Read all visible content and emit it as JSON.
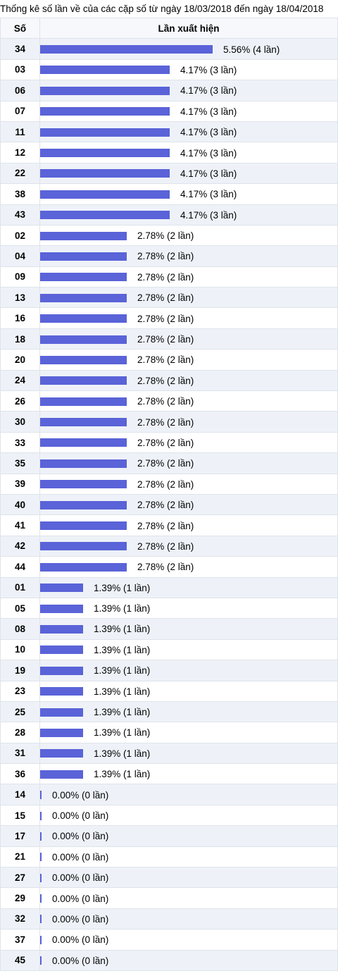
{
  "caption": "Thống kê số lần về của các cặp số từ ngày 18/03/2018 đến ngày 18/04/2018",
  "headers": {
    "num": "Số",
    "freq": "Lần xuất hiện"
  },
  "colors": {
    "bar": "#5a63d8",
    "row_alt": "#eef2f8"
  },
  "chart_data": {
    "type": "bar",
    "orientation": "horizontal",
    "title": "Thống kê số lần về của các cặp số từ ngày 18/03/2018 đến ngày 18/04/2018",
    "rows": [
      {
        "num": "34",
        "pct": 5.56,
        "count": 4,
        "label": "5.56% (4 lần)"
      },
      {
        "num": "03",
        "pct": 4.17,
        "count": 3,
        "label": "4.17% (3 lần)"
      },
      {
        "num": "06",
        "pct": 4.17,
        "count": 3,
        "label": "4.17% (3 lần)"
      },
      {
        "num": "07",
        "pct": 4.17,
        "count": 3,
        "label": "4.17% (3 lần)"
      },
      {
        "num": "11",
        "pct": 4.17,
        "count": 3,
        "label": "4.17% (3 lần)"
      },
      {
        "num": "12",
        "pct": 4.17,
        "count": 3,
        "label": "4.17% (3 lần)"
      },
      {
        "num": "22",
        "pct": 4.17,
        "count": 3,
        "label": "4.17% (3 lần)"
      },
      {
        "num": "38",
        "pct": 4.17,
        "count": 3,
        "label": "4.17% (3 lần)"
      },
      {
        "num": "43",
        "pct": 4.17,
        "count": 3,
        "label": "4.17% (3 lần)"
      },
      {
        "num": "02",
        "pct": 2.78,
        "count": 2,
        "label": "2.78% (2 lần)"
      },
      {
        "num": "04",
        "pct": 2.78,
        "count": 2,
        "label": "2.78% (2 lần)"
      },
      {
        "num": "09",
        "pct": 2.78,
        "count": 2,
        "label": "2.78% (2 lần)"
      },
      {
        "num": "13",
        "pct": 2.78,
        "count": 2,
        "label": "2.78% (2 lần)"
      },
      {
        "num": "16",
        "pct": 2.78,
        "count": 2,
        "label": "2.78% (2 lần)"
      },
      {
        "num": "18",
        "pct": 2.78,
        "count": 2,
        "label": "2.78% (2 lần)"
      },
      {
        "num": "20",
        "pct": 2.78,
        "count": 2,
        "label": "2.78% (2 lần)"
      },
      {
        "num": "24",
        "pct": 2.78,
        "count": 2,
        "label": "2.78% (2 lần)"
      },
      {
        "num": "26",
        "pct": 2.78,
        "count": 2,
        "label": "2.78% (2 lần)"
      },
      {
        "num": "30",
        "pct": 2.78,
        "count": 2,
        "label": "2.78% (2 lần)"
      },
      {
        "num": "33",
        "pct": 2.78,
        "count": 2,
        "label": "2.78% (2 lần)"
      },
      {
        "num": "35",
        "pct": 2.78,
        "count": 2,
        "label": "2.78% (2 lần)"
      },
      {
        "num": "39",
        "pct": 2.78,
        "count": 2,
        "label": "2.78% (2 lần)"
      },
      {
        "num": "40",
        "pct": 2.78,
        "count": 2,
        "label": "2.78% (2 lần)"
      },
      {
        "num": "41",
        "pct": 2.78,
        "count": 2,
        "label": "2.78% (2 lần)"
      },
      {
        "num": "42",
        "pct": 2.78,
        "count": 2,
        "label": "2.78% (2 lần)"
      },
      {
        "num": "44",
        "pct": 2.78,
        "count": 2,
        "label": "2.78% (2 lần)"
      },
      {
        "num": "01",
        "pct": 1.39,
        "count": 1,
        "label": "1.39% (1 lần)"
      },
      {
        "num": "05",
        "pct": 1.39,
        "count": 1,
        "label": "1.39% (1 lần)"
      },
      {
        "num": "08",
        "pct": 1.39,
        "count": 1,
        "label": "1.39% (1 lần)"
      },
      {
        "num": "10",
        "pct": 1.39,
        "count": 1,
        "label": "1.39% (1 lần)"
      },
      {
        "num": "19",
        "pct": 1.39,
        "count": 1,
        "label": "1.39% (1 lần)"
      },
      {
        "num": "23",
        "pct": 1.39,
        "count": 1,
        "label": "1.39% (1 lần)"
      },
      {
        "num": "25",
        "pct": 1.39,
        "count": 1,
        "label": "1.39% (1 lần)"
      },
      {
        "num": "28",
        "pct": 1.39,
        "count": 1,
        "label": "1.39% (1 lần)"
      },
      {
        "num": "31",
        "pct": 1.39,
        "count": 1,
        "label": "1.39% (1 lần)"
      },
      {
        "num": "36",
        "pct": 1.39,
        "count": 1,
        "label": "1.39% (1 lần)"
      },
      {
        "num": "14",
        "pct": 0.0,
        "count": 0,
        "label": "0.00% (0 lần)"
      },
      {
        "num": "15",
        "pct": 0.0,
        "count": 0,
        "label": "0.00% (0 lần)"
      },
      {
        "num": "17",
        "pct": 0.0,
        "count": 0,
        "label": "0.00% (0 lần)"
      },
      {
        "num": "21",
        "pct": 0.0,
        "count": 0,
        "label": "0.00% (0 lần)"
      },
      {
        "num": "27",
        "pct": 0.0,
        "count": 0,
        "label": "0.00% (0 lần)"
      },
      {
        "num": "29",
        "pct": 0.0,
        "count": 0,
        "label": "0.00% (0 lần)"
      },
      {
        "num": "32",
        "pct": 0.0,
        "count": 0,
        "label": "0.00% (0 lần)"
      },
      {
        "num": "37",
        "pct": 0.0,
        "count": 0,
        "label": "0.00% (0 lần)"
      },
      {
        "num": "45",
        "pct": 0.0,
        "count": 0,
        "label": "0.00% (0 lần)"
      }
    ]
  }
}
